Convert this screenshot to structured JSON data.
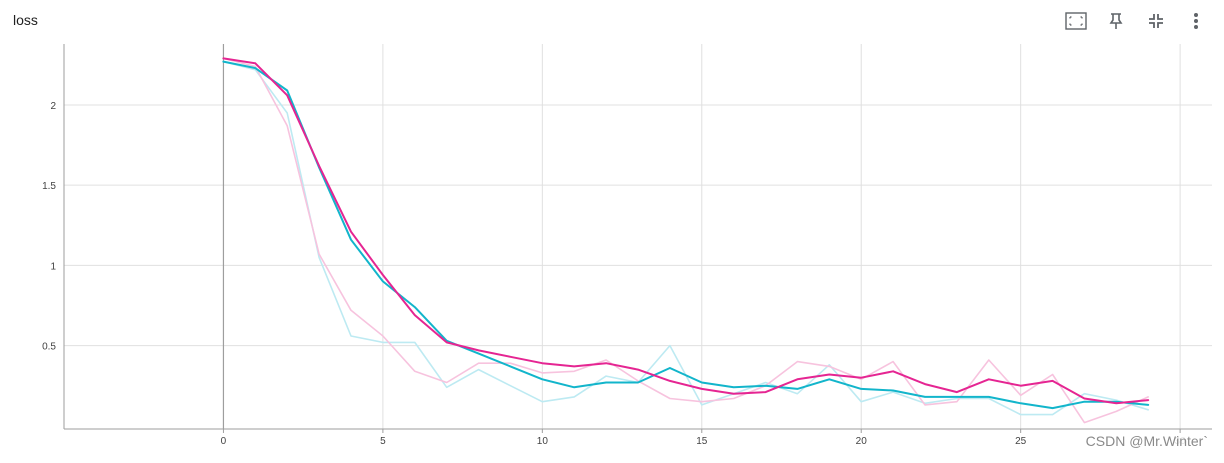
{
  "card": {
    "title": "loss"
  },
  "toolbar": {
    "buttons": [
      {
        "name": "fullscreen-button",
        "icon": "fullscreen-icon"
      },
      {
        "name": "pin-button",
        "icon": "pin-icon"
      },
      {
        "name": "fit-domain-button",
        "icon": "fit-domain-icon"
      },
      {
        "name": "more-menu-button",
        "icon": "more-vert-icon"
      }
    ]
  },
  "watermark": "CSDN @Mr.Winter`",
  "colors": {
    "series_cyan": "#12b5cb",
    "series_pink": "#e52592",
    "series_cyan_raw": "#bdeaf2",
    "series_pink_raw": "#f7c3de",
    "grid": "#e0e0e0",
    "axis": "#9e9e9e"
  },
  "chart_data": {
    "type": "line",
    "title": "loss",
    "xlabel": "",
    "ylabel": "",
    "xlim": [
      -5,
      31
    ],
    "ylim": [
      -0.02,
      2.38
    ],
    "x_ticks": [
      0,
      5,
      10,
      15,
      20,
      25,
      30
    ],
    "y_ticks": [
      0.5,
      1,
      1.5,
      2
    ],
    "grid": true,
    "x": [
      0,
      1,
      2,
      3,
      4,
      5,
      6,
      7,
      8,
      9,
      10,
      11,
      12,
      13,
      14,
      15,
      16,
      17,
      18,
      19,
      20,
      21,
      22,
      23,
      24,
      25,
      26,
      27,
      28,
      29
    ],
    "series": [
      {
        "kind": "raw",
        "color_key": "series_cyan_raw",
        "values": [
          2.27,
          2.22,
          1.95,
          1.05,
          0.56,
          0.52,
          0.52,
          0.24,
          0.35,
          0.25,
          0.15,
          0.18,
          0.31,
          0.27,
          0.5,
          0.13,
          0.2,
          0.27,
          0.2,
          0.38,
          0.15,
          0.21,
          0.14,
          0.17,
          0.17,
          0.07,
          0.07,
          0.2,
          0.16,
          0.1
        ]
      },
      {
        "kind": "raw",
        "color_key": "series_pink_raw",
        "values": [
          2.29,
          2.24,
          1.87,
          1.07,
          0.72,
          0.56,
          0.34,
          0.27,
          0.39,
          0.39,
          0.33,
          0.34,
          0.41,
          0.28,
          0.17,
          0.15,
          0.17,
          0.25,
          0.4,
          0.37,
          0.29,
          0.4,
          0.13,
          0.15,
          0.41,
          0.19,
          0.32,
          0.02,
          0.09,
          0.18
        ]
      },
      {
        "kind": "smoothed",
        "color_key": "series_cyan",
        "values": [
          2.27,
          2.23,
          2.09,
          1.61,
          1.16,
          0.9,
          0.74,
          0.53,
          0.45,
          0.37,
          0.29,
          0.24,
          0.27,
          0.27,
          0.36,
          0.27,
          0.24,
          0.25,
          0.23,
          0.29,
          0.23,
          0.22,
          0.18,
          0.18,
          0.18,
          0.14,
          0.11,
          0.15,
          0.15,
          0.13
        ]
      },
      {
        "kind": "smoothed",
        "color_key": "series_pink",
        "values": [
          2.29,
          2.26,
          2.06,
          1.62,
          1.21,
          0.94,
          0.69,
          0.52,
          0.47,
          0.43,
          0.39,
          0.37,
          0.39,
          0.35,
          0.28,
          0.23,
          0.2,
          0.21,
          0.29,
          0.32,
          0.3,
          0.34,
          0.26,
          0.21,
          0.29,
          0.25,
          0.28,
          0.17,
          0.14,
          0.16
        ]
      }
    ]
  }
}
